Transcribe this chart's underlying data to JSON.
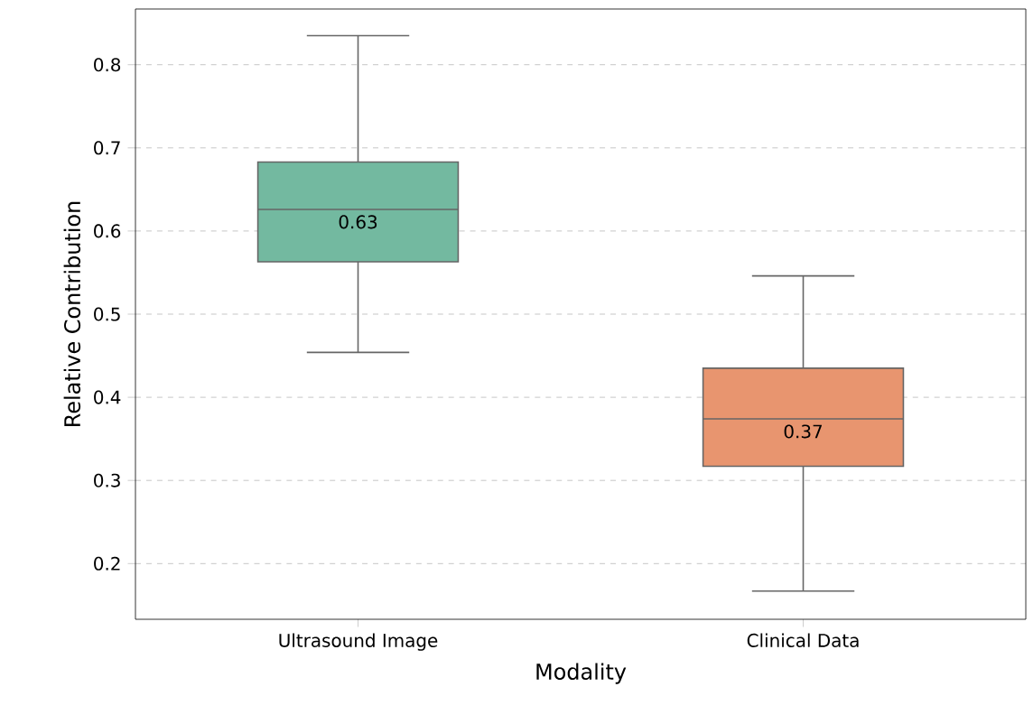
{
  "chart_data": {
    "type": "box",
    "xlabel": "Modality",
    "ylabel": "Relative Contribution",
    "categories": [
      "Ultrasound Image",
      "Clinical Data"
    ],
    "colors": [
      "#73b9a0",
      "#e8956f"
    ],
    "boxes": [
      {
        "low": 0.454,
        "q1": 0.563,
        "median": 0.626,
        "q3": 0.683,
        "high": 0.835
      },
      {
        "low": 0.167,
        "q1": 0.317,
        "median": 0.374,
        "q3": 0.435,
        "high": 0.546
      }
    ],
    "annotations": [
      "0.63",
      "0.37"
    ],
    "ylim": [
      0.133,
      0.867
    ],
    "yticks": [
      0.2,
      0.3,
      0.4,
      0.5,
      0.6,
      0.7,
      0.8
    ],
    "grid": "y"
  }
}
